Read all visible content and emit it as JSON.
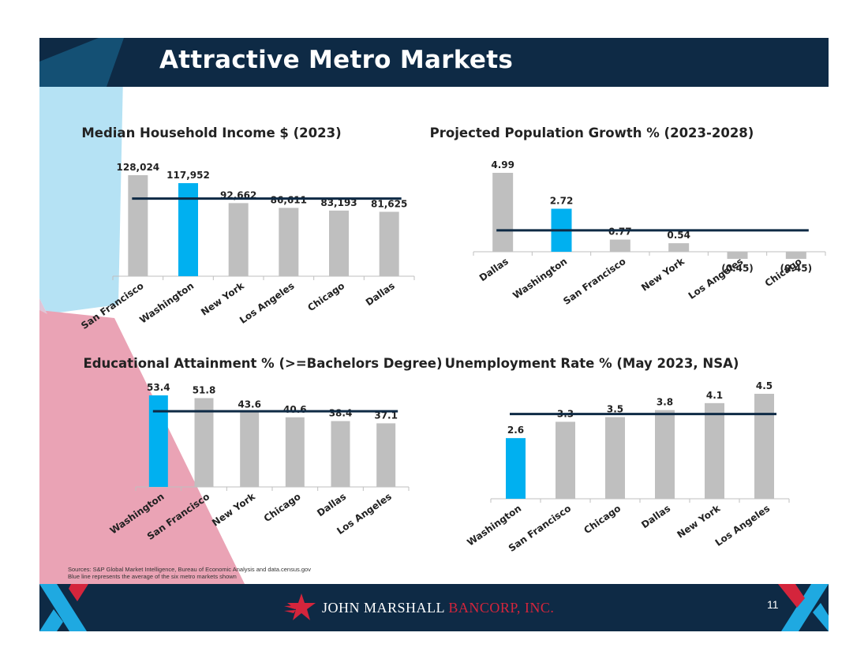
{
  "slide": {
    "title": "Attractive Metro Markets",
    "page_number": "11",
    "sources_line1": "Sources:  S&P Global Market Intelligence, Bureau of Economic Analysis and data.census.gov",
    "sources_line2": "Blue line represents the average of the six metro markets shown",
    "company_first": "John Marshall",
    "company_second": "Bancorp, Inc.",
    "colors": {
      "navy": "#0e2a45",
      "highlight_bar": "#00b0f0",
      "bar": "#bfbfbf",
      "average_line": "#0e2a45",
      "brand_red": "#d4253c",
      "brand_blue": "#1fa9e1"
    }
  },
  "chart_data": [
    {
      "type": "bar",
      "title": "Median Household Income $ (2023)",
      "categories": [
        "San Francisco",
        "Washington",
        "New York",
        "Los Angeles",
        "Chicago",
        "Dallas"
      ],
      "values": [
        128024,
        117952,
        92662,
        86611,
        83193,
        81625
      ],
      "labels": [
        "128,024",
        "117,952",
        "92,662",
        "86,611",
        "83,193",
        "81,625"
      ],
      "highlight_index": 1,
      "average_line": true,
      "ylim": [
        0,
        140000
      ]
    },
    {
      "type": "bar",
      "title": "Projected Population Growth % (2023-2028)",
      "categories": [
        "Dallas",
        "Washington",
        "San Francisco",
        "New York",
        "Los Angeles",
        "Chicago"
      ],
      "values": [
        4.99,
        2.72,
        0.77,
        0.54,
        -0.45,
        -0.45
      ],
      "labels": [
        "4.99",
        "2.72",
        "0.77",
        "0.54",
        "(0.45)",
        "(0.45)"
      ],
      "highlight_index": 1,
      "average_line": true,
      "ylim": [
        -1,
        6
      ]
    },
    {
      "type": "bar",
      "title": "Educational Attainment % (>=Bachelors Degree)",
      "categories": [
        "Washington",
        "San Francisco",
        "New York",
        "Chicago",
        "Dallas",
        "Los Angeles"
      ],
      "values": [
        53.4,
        51.8,
        43.6,
        40.6,
        38.4,
        37.1
      ],
      "labels": [
        "53.4",
        "51.8",
        "43.6",
        "40.6",
        "38.4",
        "37.1"
      ],
      "highlight_index": 0,
      "average_line": true,
      "ylim": [
        0,
        60
      ]
    },
    {
      "type": "bar",
      "title": "Unemployment Rate % (May 2023, NSA)",
      "categories": [
        "Washington",
        "San Francisco",
        "Chicago",
        "Dallas",
        "New York",
        "Los Angeles"
      ],
      "values": [
        2.6,
        3.3,
        3.5,
        3.8,
        4.1,
        4.5
      ],
      "labels": [
        "2.6",
        "3.3",
        "3.5",
        "3.8",
        "4.1",
        "4.5"
      ],
      "highlight_index": 0,
      "average_line": true,
      "ylim": [
        0,
        5
      ]
    }
  ]
}
